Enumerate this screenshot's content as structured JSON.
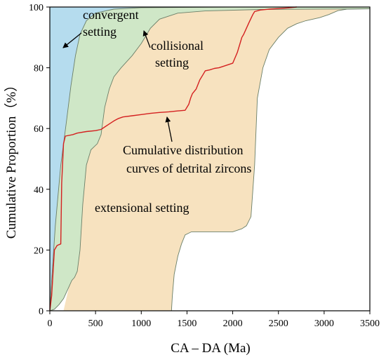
{
  "chart_data": {
    "type": "area",
    "xlabel": "CA – DA (Ma)",
    "ylabel": "Cumulative Proportion（%）",
    "xlim": [
      0,
      3500
    ],
    "ylim": [
      0,
      100
    ],
    "x_ticks": [
      0,
      500,
      1000,
      1500,
      2000,
      2500,
      3000,
      3500
    ],
    "y_ticks": [
      0,
      20,
      40,
      60,
      80,
      100
    ],
    "grid": false,
    "colors": {
      "convergent": "#b5dcee",
      "collisional": "#cfe7c7",
      "extensional": "#f7e2bf",
      "curve": "#d42020",
      "outline": "#6b7f68"
    },
    "fields": [
      {
        "name": "convergent setting",
        "upper": [
          [
            0,
            0
          ],
          [
            0,
            100
          ],
          [
            3500,
            100
          ]
        ],
        "lower": [
          [
            0,
            0
          ],
          [
            20,
            10
          ],
          [
            60,
            28
          ],
          [
            120,
            48
          ],
          [
            180,
            62
          ],
          [
            230,
            74
          ],
          [
            280,
            84
          ],
          [
            330,
            91
          ],
          [
            400,
            95.5
          ],
          [
            500,
            98
          ],
          [
            700,
            99.3
          ],
          [
            1000,
            99.8
          ],
          [
            2000,
            100
          ],
          [
            3500,
            100
          ]
        ]
      },
      {
        "name": "collisional setting",
        "upper": [
          [
            0,
            0
          ],
          [
            20,
            10
          ],
          [
            60,
            28
          ],
          [
            120,
            48
          ],
          [
            180,
            62
          ],
          [
            230,
            74
          ],
          [
            280,
            84
          ],
          [
            330,
            91
          ],
          [
            400,
            95.5
          ],
          [
            500,
            98
          ],
          [
            700,
            99.3
          ],
          [
            1000,
            99.8
          ],
          [
            2000,
            100
          ],
          [
            3500,
            100
          ]
        ],
        "lower": [
          [
            0,
            0
          ],
          [
            50,
            0.5
          ],
          [
            100,
            2
          ],
          [
            150,
            4
          ],
          [
            210,
            8
          ],
          [
            240,
            10
          ],
          [
            270,
            11
          ],
          [
            300,
            13
          ],
          [
            330,
            20
          ],
          [
            360,
            35
          ],
          [
            400,
            48
          ],
          [
            450,
            53
          ],
          [
            520,
            55
          ],
          [
            560,
            58
          ],
          [
            600,
            67
          ],
          [
            650,
            73
          ],
          [
            700,
            77
          ],
          [
            780,
            80
          ],
          [
            900,
            84
          ],
          [
            1000,
            88
          ],
          [
            1100,
            93
          ],
          [
            1200,
            96
          ],
          [
            1400,
            98
          ],
          [
            1700,
            98.7
          ],
          [
            2300,
            99.2
          ],
          [
            3500,
            99.4
          ]
        ]
      },
      {
        "name": "extensional setting",
        "upper": [
          [
            150,
            0
          ],
          [
            210,
            8
          ],
          [
            240,
            10
          ],
          [
            270,
            11
          ],
          [
            300,
            13
          ],
          [
            330,
            20
          ],
          [
            360,
            35
          ],
          [
            400,
            48
          ],
          [
            450,
            53
          ],
          [
            520,
            55
          ],
          [
            560,
            58
          ],
          [
            600,
            67
          ],
          [
            650,
            73
          ],
          [
            700,
            77
          ],
          [
            780,
            80
          ],
          [
            900,
            84
          ],
          [
            1000,
            88
          ],
          [
            1100,
            93
          ],
          [
            1200,
            96
          ],
          [
            1400,
            98
          ],
          [
            1700,
            98.7
          ],
          [
            2300,
            99.2
          ],
          [
            3500,
            99.4
          ]
        ],
        "lower": [
          [
            150,
            0
          ],
          [
            1330,
            0
          ],
          [
            1340,
            5
          ],
          [
            1360,
            12
          ],
          [
            1400,
            18
          ],
          [
            1440,
            22
          ],
          [
            1480,
            25
          ],
          [
            1550,
            26
          ],
          [
            1800,
            26
          ],
          [
            2000,
            26
          ],
          [
            2100,
            27
          ],
          [
            2150,
            28
          ],
          [
            2200,
            31
          ],
          [
            2240,
            48
          ],
          [
            2270,
            70
          ],
          [
            2330,
            80
          ],
          [
            2400,
            86
          ],
          [
            2500,
            90
          ],
          [
            2600,
            93
          ],
          [
            2700,
            94.5
          ],
          [
            2800,
            95.5
          ],
          [
            2950,
            96.5
          ],
          [
            3050,
            97.5
          ],
          [
            3150,
            98.8
          ],
          [
            3250,
            99.3
          ],
          [
            3500,
            99.4
          ]
        ]
      }
    ],
    "series": [
      {
        "name": "Cumulative distribution curves of detrital zircons",
        "x": [
          0,
          20,
          50,
          80,
          120,
          130,
          150,
          170,
          250,
          300,
          400,
          500,
          560,
          600,
          650,
          700,
          750,
          800,
          900,
          1000,
          1100,
          1200,
          1300,
          1400,
          1480,
          1500,
          1520,
          1540,
          1560,
          1600,
          1640,
          1680,
          1700,
          1750,
          1800,
          1850,
          1900,
          2000,
          2050,
          2080,
          2100,
          2120,
          2150,
          2180,
          2220,
          2240,
          2300,
          2400,
          2500,
          2600,
          2700
        ],
        "y": [
          0,
          5,
          20,
          21.5,
          22,
          42,
          55,
          57.5,
          58,
          58.5,
          59,
          59.3,
          59.7,
          60.5,
          61.5,
          62.5,
          63.3,
          63.8,
          64.2,
          64.6,
          65,
          65.3,
          65.5,
          65.8,
          66,
          67,
          68,
          70,
          71.5,
          73,
          76,
          78,
          79,
          79.3,
          79.8,
          80,
          80.5,
          81.5,
          85,
          88,
          90,
          91,
          93,
          95,
          97.5,
          98.5,
          99,
          99.3,
          99.5,
          99.7,
          100
        ]
      }
    ],
    "annotations": [
      {
        "id": "convergent",
        "lines": [
          "convergent",
          "setting"
        ]
      },
      {
        "id": "collisional",
        "lines": [
          "collisional",
          "setting"
        ]
      },
      {
        "id": "curve",
        "lines": [
          "Cumulative distribution",
          "curves of detrital zircons"
        ]
      },
      {
        "id": "extensional",
        "lines": [
          "extensional setting"
        ]
      }
    ]
  }
}
